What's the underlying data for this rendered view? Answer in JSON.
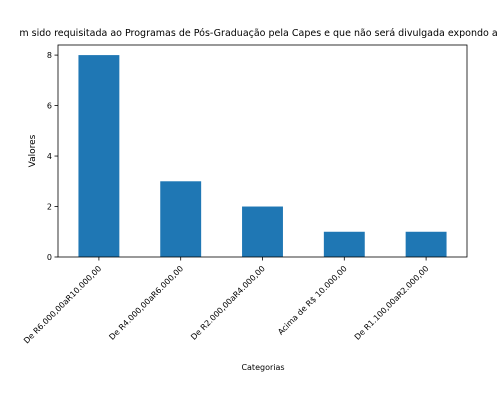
{
  "chart_data": {
    "type": "bar",
    "title": "m sido requisitada ao Programas de Pós-Graduação pela Capes e que não será divulgada expondo a r",
    "xlabel": "Categorias",
    "ylabel": "Valores",
    "categories": [
      "De R6.000,00aR10.000,00",
      "De R4.000,00aR6.000,00",
      "De R2.000,00aR4.000,00",
      "Acima de R$ 10.000,00",
      "De R1.100,00aR2.000,00"
    ],
    "values": [
      8,
      3,
      2,
      1,
      1
    ],
    "ylim": [
      0,
      8.4
    ],
    "yticks": [
      0,
      2,
      4,
      6,
      8
    ],
    "grid": false,
    "legend": "none",
    "colors": {
      "bar": "#1f77b4",
      "axis": "#000000",
      "background": "#ffffff"
    }
  }
}
